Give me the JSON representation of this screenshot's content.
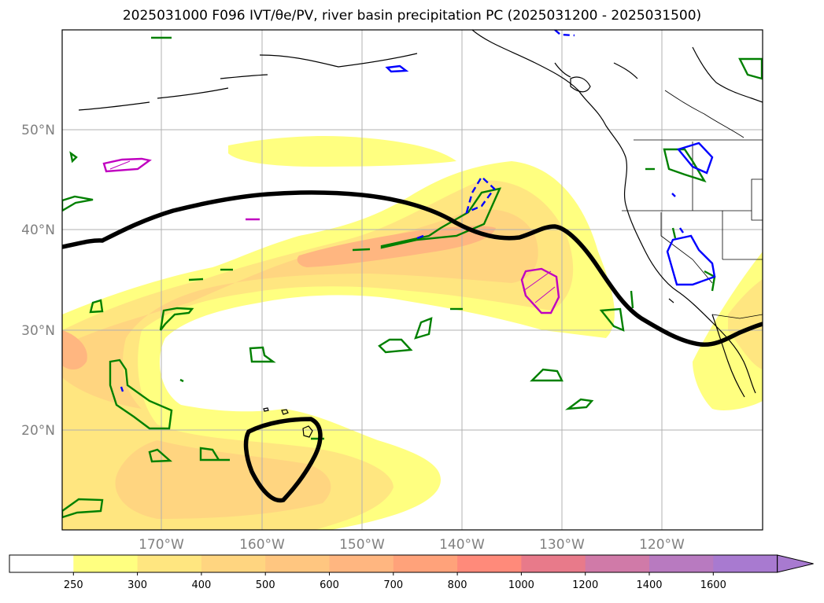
{
  "title": "2025031000 F096 IVT/θe/PV, river basin precipitation PC (2025031200 - 2025031500)",
  "latitude_labels": [
    "50°N",
    "40°N",
    "30°N",
    "20°N"
  ],
  "longitude_labels": [
    "170°W",
    "160°W",
    "150°W",
    "140°W",
    "130°W",
    "120°W"
  ],
  "colorbar": {
    "ticks": [
      "250",
      "300",
      "400",
      "500",
      "600",
      "700",
      "800",
      "1000",
      "1200",
      "1400",
      "1600"
    ],
    "colors": [
      "#ffffff",
      "#ffff80",
      "#ffe680",
      "#ffd580",
      "#ffc680",
      "#ffb680",
      "#ffa27a",
      "#ff8a7a",
      "#e87a8a",
      "#d07aa8",
      "#b87ac0",
      "#a87ad0"
    ],
    "extend": "max"
  },
  "contour_colors": {
    "ivt_fill_1": "#ffff80",
    "ivt_fill_2": "#ffe680",
    "ivt_fill_3": "#ffd580",
    "ivt_fill_4": "#ffb680",
    "pv_line": "#000000",
    "theta_green": "#008000",
    "theta_blue": "#0000ff",
    "theta_magenta": "#c000c0"
  }
}
